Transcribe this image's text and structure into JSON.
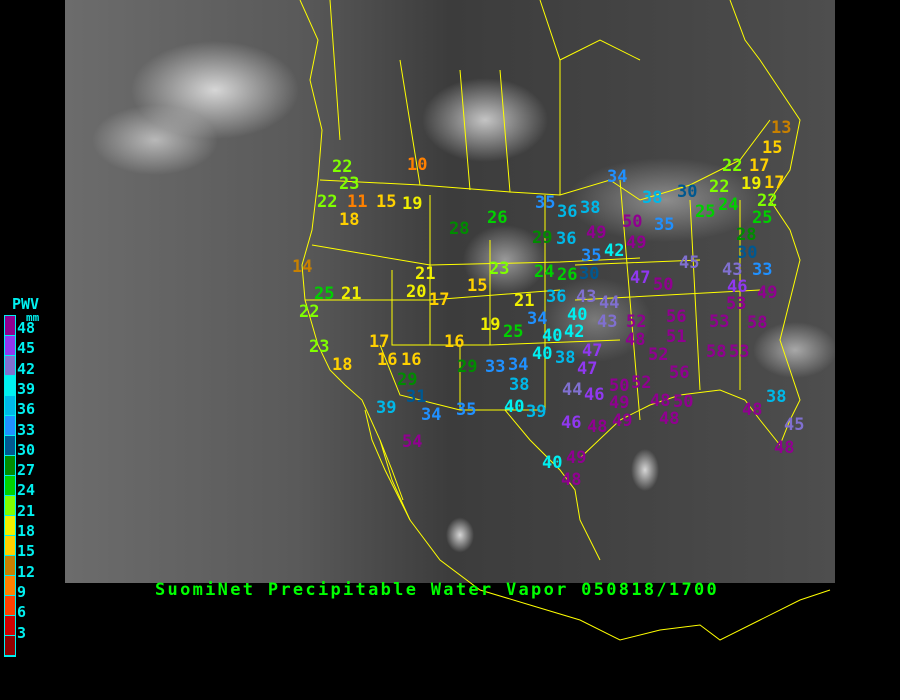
{
  "title": "SuomiNet Precipitable Water Vapor 050818/1700",
  "legend": {
    "title": "PWV",
    "unit": "mm",
    "labels": [
      "48",
      "45",
      "42",
      "39",
      "36",
      "33",
      "30",
      "27",
      "24",
      "21",
      "18",
      "15",
      "12",
      "9",
      "6",
      "3"
    ],
    "colors": [
      "#900090",
      "#9038f0",
      "#8070d0",
      "#00f0f0",
      "#00b8e8",
      "#2090ff",
      "#005890",
      "#008c00",
      "#00d000",
      "#80ff00",
      "#f0f000",
      "#ffd000",
      "#c88000",
      "#ff8000",
      "#ff4000",
      "#d00000",
      "#900000"
    ]
  },
  "colors": {
    "border": "#ffff00",
    "title": "#00ff00",
    "legend_text": "#00f0f0"
  },
  "stations": [
    "22",
    "23",
    "22",
    "11",
    "15",
    "19",
    "18",
    "10",
    "28",
    "26",
    "35",
    "36",
    "29",
    "36",
    "14",
    "25",
    "21",
    "21",
    "20",
    "17",
    "15",
    "23",
    "24",
    "26",
    "21",
    "36",
    "13",
    "15",
    "22",
    "17",
    "19",
    "17",
    "22",
    "24",
    "22",
    "25",
    "25",
    "30",
    "38",
    "34",
    "38",
    "50",
    "35",
    "49",
    "42",
    "49",
    "35",
    "30",
    "28",
    "30",
    "45",
    "43",
    "46",
    "33",
    "47",
    "50",
    "53",
    "49",
    "43",
    "44",
    "22",
    "23",
    "18",
    "17",
    "16",
    "16",
    "16",
    "19",
    "25",
    "34",
    "42",
    "40",
    "40",
    "40",
    "38",
    "29",
    "31",
    "39",
    "34",
    "35",
    "29",
    "33",
    "34",
    "38",
    "40",
    "39",
    "54",
    "40",
    "49",
    "48",
    "46",
    "44",
    "43",
    "52",
    "56",
    "53",
    "58",
    "48",
    "51",
    "52",
    "58",
    "53",
    "47",
    "47",
    "56",
    "52",
    "46",
    "50",
    "49",
    "49",
    "48",
    "50",
    "48",
    "38",
    "48",
    "45",
    "48",
    "48"
  ]
}
